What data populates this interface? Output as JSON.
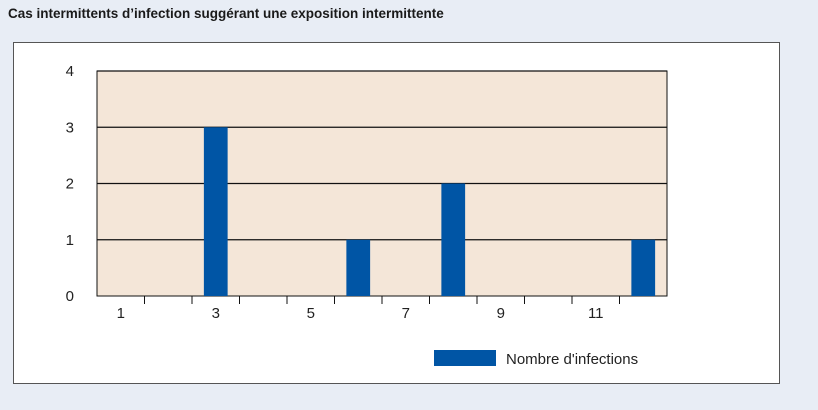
{
  "chart_data": {
    "type": "bar",
    "title": "Cas intermittents d’infection suggérant une exposition intermittente",
    "x": [
      1,
      2,
      3,
      4,
      5,
      6,
      7,
      8,
      9,
      10,
      11,
      12
    ],
    "x_tick_labels": [
      "1",
      "3",
      "5",
      "7",
      "9",
      "11"
    ],
    "x_tick_values": [
      1,
      3,
      5,
      7,
      9,
      11
    ],
    "y_tick_labels": [
      "0",
      "1",
      "2",
      "3",
      "4"
    ],
    "series": [
      {
        "name": "Nombre d'infections",
        "values": [
          0,
          0,
          3,
          0,
          0,
          1,
          0,
          2,
          0,
          0,
          0,
          1
        ]
      }
    ],
    "ylim": [
      0,
      4
    ],
    "xlim": [
      0.5,
      12.5
    ],
    "grid": "horizontal",
    "legend_position": "bottom-right",
    "colors": {
      "bar": "#0055a5",
      "plot_background": "#f4e6d8",
      "page_background": "#e8edf5",
      "grid": "#111111"
    }
  }
}
